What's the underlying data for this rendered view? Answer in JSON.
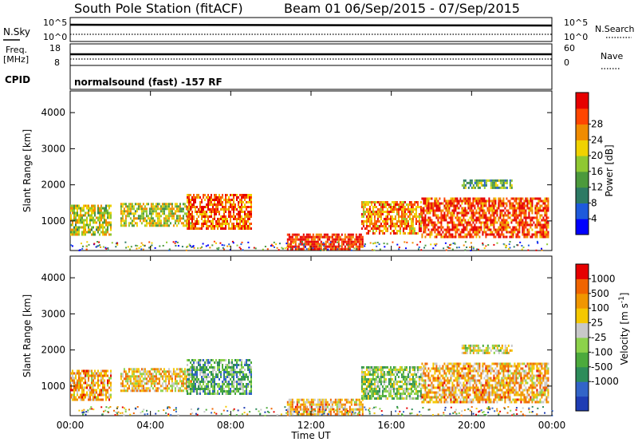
{
  "header": {
    "title": "South Pole Station (fitACF)",
    "beam": "Beam 01",
    "date_range": "06/Sep/2015 - 07/Sep/2015"
  },
  "top_panels": {
    "sky_panel": {
      "left_label": "N.Sky",
      "left_ticks": [
        "10^5",
        "10^0"
      ],
      "right_ticks": [
        "10^5",
        "10^0"
      ],
      "right_label": "N.Search"
    },
    "freq_panel": {
      "left_label_1": "Freq.",
      "left_label_2": "[MHz]",
      "left_ticks": [
        "18",
        "8"
      ],
      "right_ticks": [
        "60",
        "0"
      ],
      "right_label": "Nave"
    },
    "cpid_label": "CPID",
    "cpid_text": "normalsound (fast) -157 RF"
  },
  "chart_data": [
    {
      "type": "heatmap",
      "title": "",
      "xlabel": "",
      "ylabel": "Slant Range [km]",
      "x_ticks": [
        "00:00",
        "04:00",
        "08:00",
        "12:00",
        "16:00",
        "20:00",
        "00:00"
      ],
      "y_ticks": [
        1000,
        2000,
        3000,
        4000
      ],
      "xlim_hours": [
        0,
        24
      ],
      "ylim": [
        180,
        4600
      ],
      "colorbar": {
        "label": "Power [dB]",
        "ticks": [
          "4",
          "8",
          "12",
          "16",
          "20",
          "24",
          "28"
        ],
        "colors": [
          "#0000ff",
          "#1e5adc",
          "#2d7a64",
          "#4c9a3c",
          "#8fc832",
          "#f0d200",
          "#f08c00",
          "#ff4600",
          "#e60000"
        ]
      },
      "echo_regions": [
        {
          "t0": 0.0,
          "t1": 2.0,
          "r0": 650,
          "r1": 1450,
          "level": 0.55
        },
        {
          "t0": 2.5,
          "t1": 6.0,
          "r0": 850,
          "r1": 1500,
          "level": 0.55
        },
        {
          "t0": 5.8,
          "t1": 9.0,
          "r0": 800,
          "r1": 1750,
          "level": 0.8
        },
        {
          "t0": 10.8,
          "t1": 14.6,
          "r0": 250,
          "r1": 650,
          "level": 0.9
        },
        {
          "t0": 14.5,
          "t1": 17.5,
          "r0": 650,
          "r1": 1550,
          "level": 0.75
        },
        {
          "t0": 17.5,
          "t1": 23.8,
          "r0": 550,
          "r1": 1650,
          "level": 0.85
        },
        {
          "t0": 19.5,
          "t1": 22.0,
          "r0": 1900,
          "r1": 2150,
          "level": 0.4
        }
      ]
    },
    {
      "type": "heatmap",
      "title": "",
      "xlabel": "Time UT",
      "ylabel": "Slant Range [km]",
      "x_ticks": [
        "00:00",
        "04:00",
        "08:00",
        "12:00",
        "16:00",
        "20:00",
        "00:00"
      ],
      "y_ticks": [
        1000,
        2000,
        3000,
        4000
      ],
      "xlim_hours": [
        0,
        24
      ],
      "ylim": [
        180,
        4600
      ],
      "colorbar": {
        "label": "Velocity [m s^-1]",
        "ticks": [
          "1000",
          "500",
          "100",
          "25",
          "-25",
          "-100",
          "-500",
          "-1000"
        ],
        "colors": [
          "#1e3cb4",
          "#3264c8",
          "#2d8c5a",
          "#4caa3c",
          "#8cd24b",
          "#c8c8c8",
          "#f5c800",
          "#f09600",
          "#f06400",
          "#e60000"
        ]
      },
      "echo_regions": [
        {
          "t0": 0.0,
          "t1": 2.0,
          "r0": 650,
          "r1": 1450,
          "level": 0.7
        },
        {
          "t0": 2.5,
          "t1": 6.0,
          "r0": 850,
          "r1": 1500,
          "level": 0.65
        },
        {
          "t0": 5.8,
          "t1": 9.0,
          "r0": 800,
          "r1": 1750,
          "level": 0.35
        },
        {
          "t0": 10.8,
          "t1": 14.6,
          "r0": 250,
          "r1": 650,
          "level": 0.7
        },
        {
          "t0": 14.5,
          "t1": 17.5,
          "r0": 650,
          "r1": 1550,
          "level": 0.45
        },
        {
          "t0": 17.5,
          "t1": 23.8,
          "r0": 550,
          "r1": 1650,
          "level": 0.7
        },
        {
          "t0": 19.5,
          "t1": 22.0,
          "r0": 1900,
          "r1": 2150,
          "level": 0.55
        }
      ]
    }
  ]
}
